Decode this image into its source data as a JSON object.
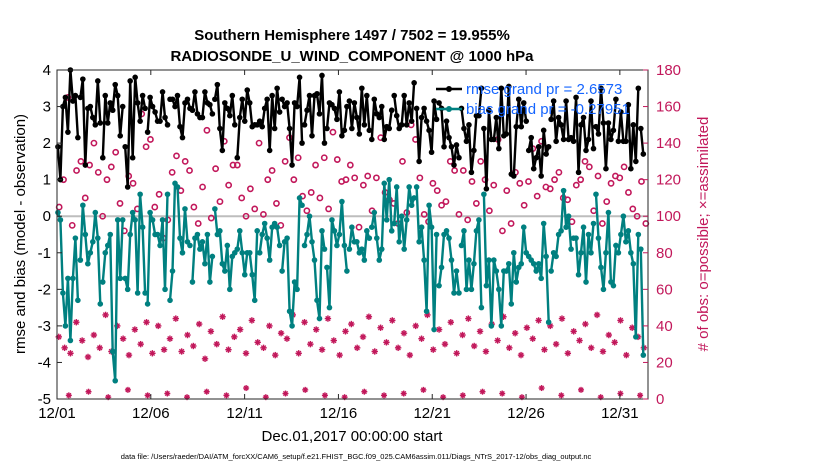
{
  "chart_data": {
    "type": "line",
    "title_line1": "Southern Hemisphere 1497 / 7502 = 19.955%",
    "title_line2": "RADIOSONDE_U_WIND_COMPONENT @ 1000 hPa",
    "xlabel": "Dec.01,2017 00:00:00 start",
    "ylabel_left": "rmse and bias (model - observation)",
    "ylabel_right": "# of obs: o=possible; ×=assimilated",
    "footer": "data file: /Users/raeder/DAI/ATM_forcXX/CAM6_setup/f.e21.FHIST_BGC.f09_025.CAM6assim.011/Diags_NTrS_2017-12/obs_diag_output.nc",
    "x_range_days": [
      0,
      31.5
    ],
    "x_ticks": [
      {
        "day": 0,
        "label": "12/01"
      },
      {
        "day": 5,
        "label": "12/06"
      },
      {
        "day": 10,
        "label": "12/11"
      },
      {
        "day": 15,
        "label": "12/16"
      },
      {
        "day": 20,
        "label": "12/21"
      },
      {
        "day": 25,
        "label": "12/26"
      },
      {
        "day": 30,
        "label": "12/31"
      }
    ],
    "ylim_left": [
      -5,
      4
    ],
    "yticks_left": [
      "4",
      "3",
      "2",
      "1",
      "0",
      "-1",
      "-2",
      "-3",
      "-4",
      "-5"
    ],
    "ylim_right": [
      0,
      180
    ],
    "yticks_right": [
      "180",
      "160",
      "140",
      "120",
      "100",
      "80",
      "60",
      "40",
      "20",
      "0"
    ],
    "legend": {
      "position": "top-right",
      "rmse_label": "rmse grand pr = 2.6573",
      "bias_label": "bias grand pr = -0.27951"
    },
    "colors": {
      "rmse": "#000000",
      "bias": "#008080",
      "obs": "#c2185b",
      "zero_line": "#bdbdbd",
      "legend_text": "#1565ff"
    },
    "rmse": [
      1.9,
      1.0,
      3.0,
      3.25,
      2.3,
      4.0,
      3.15,
      3.3,
      2.15,
      3.25,
      3.75,
      1.4,
      2.95,
      3.0,
      2.7,
      2.5,
      3.7,
      2.55,
      1.6,
      3.3,
      2.55,
      3.1,
      2.9,
      3.6,
      3.3,
      2.2,
      3.0,
      1.9,
      0.8,
      3.7,
      1.6,
      3.8,
      3.1,
      2.6,
      3.3,
      2.95,
      2.3,
      3.25,
      3.0,
      2.85,
      2.6,
      2.6,
      3.4,
      2.7,
      2.5,
      3.2,
      3.2,
      3.0,
      3.3,
      2.45,
      2.15,
      3.1,
      3.2,
      2.95,
      2.9,
      3.4,
      2.8,
      2.7,
      2.7,
      3.4,
      3.1,
      3.05,
      2.8,
      3.2,
      3.6,
      2.4,
      1.8,
      3.1,
      2.95,
      2.75,
      3.3,
      2.5,
      1.6,
      2.7,
      3.2,
      2.6,
      3.45,
      3.1,
      2.45,
      2.5,
      2.5,
      2.6,
      2.45,
      2.95,
      3.2,
      1.8,
      3.3,
      2.4,
      3.5,
      2.85,
      3.2,
      3.0,
      3.1,
      2.4,
      1.4,
      3.1,
      3.0,
      3.8,
      2.0,
      2.5,
      2.9,
      3.3,
      2.2,
      3.3,
      3.35,
      2.8,
      3.85,
      2.0,
      2.4,
      3.1,
      3.05,
      2.95,
      2.65,
      3.4,
      2.2,
      2.35,
      3.0,
      3.15,
      2.4,
      3.1,
      2.7,
      2.25,
      3.5,
      2.5,
      3.3,
      2.35,
      2.1,
      3.2,
      2.8,
      2.7,
      3.0,
      2.1,
      2.45,
      2.4,
      2.9,
      3.3,
      2.75,
      2.4,
      2.5,
      3.3,
      2.5,
      3.1,
      2.6,
      3.65,
      2.95,
      1.5,
      2.7,
      2.95,
      2.6,
      2.35,
      1.75,
      3.15,
      2.65,
      3.1,
      2.95,
      1.9,
      2.6,
      2.15,
      1.9,
      1.4,
      1.95,
      1.6,
      2.95,
      2.4,
      2.05,
      2.5,
      1.2,
      1.8,
      2.75,
      2.75,
      3.5,
      2.4,
      0.75,
      2.9,
      2.1,
      2.1,
      2.7,
      1.85,
      3.5,
      2.2,
      2.25,
      3.55,
      1.15,
      1.1,
      2.45,
      3.2,
      2.45,
      3.1,
      2.6,
      1.8,
      2.15,
      1.3,
      1.6,
      1.9,
      1.1,
      2.35,
      1.7,
      1.9,
      2.65,
      3.15,
      2.05,
      2.7,
      2.5,
      2.1,
      3.15,
      2.1,
      2.15,
      2.05,
      3.25,
      1.2,
      2.5,
      2.7,
      1.8,
      2.1,
      3.15,
      1.85,
      2.45,
      2.25,
      3.5,
      2.55,
      1.3,
      2.55,
      2.1,
      2.35,
      3.2,
      2.05,
      2.85,
      2.05,
      2.05,
      3.05,
      1.3,
      2.5,
      1.5,
      3.5,
      2.4,
      1.7
    ],
    "bias": [
      0.1,
      -0.1,
      -2.1,
      -3.0,
      -1.7,
      -3.4,
      -1.7,
      -0.6,
      -2.3,
      -1.2,
      0.3,
      -0.5,
      -1.3,
      -1.0,
      -0.7,
      0.1,
      -0.6,
      -2.4,
      -1.8,
      -1.0,
      -0.8,
      -0.5,
      -3.7,
      -4.5,
      -0.1,
      -1.7,
      -0.1,
      -1.7,
      -2.0,
      -0.5,
      0.1,
      -0.1,
      -2.1,
      0.6,
      -0.3,
      -2.1,
      -2.4,
      0.1,
      -0.1,
      -0.5,
      -0.5,
      -0.8,
      -0.1,
      -2.0,
      0.6,
      -2.3,
      -1.5,
      0.9,
      0.8,
      -0.6,
      -1.0,
      0.2,
      -0.7,
      -0.8,
      -1.8,
      -0.6,
      -0.5,
      -0.9,
      -0.7,
      -1.3,
      -0.5,
      -1.8,
      -1.1,
      0.2,
      -0.5,
      -0.4,
      -1.3,
      -1.5,
      -0.8,
      -2.0,
      -1.1,
      -1.0,
      -0.9,
      -0.4,
      -1.0,
      -1.6,
      -1.0,
      -1.0,
      -1.6,
      -2.3,
      -0.4,
      -1.0,
      -0.5,
      -0.2,
      -0.6,
      -1.2,
      -0.3,
      -0.2,
      -0.3,
      -0.8,
      -1.5,
      -0.7,
      -0.6,
      -2.6,
      -3.0,
      -1.8,
      -2.0,
      0.5,
      0.3,
      -0.8,
      -0.5,
      0.0,
      -0.7,
      -1.2,
      -2.3,
      -2.8,
      -0.4,
      -0.9,
      -1.4,
      -2.5,
      -0.1,
      -0.4,
      -0.8,
      -0.5,
      0.4,
      -0.8,
      -1.5,
      -0.9,
      -0.3,
      -0.7,
      -0.7,
      -1.0,
      -0.9,
      -1.2,
      -0.4,
      -0.6,
      -0.3,
      0.1,
      -0.6,
      -1.2,
      -0.9,
      0.9,
      -0.1,
      1.0,
      -0.4,
      -0.2,
      0.8,
      -0.7,
      0.0,
      -0.9,
      -0.1,
      0.8,
      0.3,
      0.5,
      0.8,
      -0.7,
      -0.3,
      -1.2,
      -2.6,
      0.3,
      -0.3,
      -3.1,
      -0.5,
      -1.9,
      -1.4,
      -0.5,
      -0.4,
      -0.6,
      -1.2,
      -2.1,
      -1.5,
      -2.1,
      -0.8,
      -0.4,
      -2.0,
      -1.2,
      -2.0,
      -1.3,
      -0.4,
      -0.1,
      -2.5,
      0.6,
      -1.9,
      -1.2,
      -3.0,
      -1.2,
      -1.5,
      -2.0,
      -3.0,
      -1.5,
      -1.5,
      -1.3,
      -2.4,
      -1.0,
      -1.8,
      -1.4,
      -1.3,
      -0.3,
      -1.0,
      -1.1,
      -1.2,
      -1.3,
      -1.5,
      -1.3,
      -1.7,
      -0.2,
      -1.1,
      -2.9,
      -1.5,
      -1.0,
      -1.1,
      -0.5,
      -0.4,
      0.7,
      -0.3,
      0.0,
      -0.9,
      -0.6,
      -0.6,
      -1.6,
      -1.0,
      -0.3,
      -1.8,
      -0.5,
      -1.0,
      -0.2,
      0.6,
      -0.6,
      -1.4,
      -2.0,
      -1.0,
      0.1,
      -1.8,
      -1.9,
      -0.8,
      -1.0,
      -0.5,
      0.0,
      -0.7,
      -0.4,
      -1.0,
      -1.3,
      -3.3,
      -0.5,
      -0.9,
      -3.8
    ],
    "obs_possible": [
      105,
      120,
      165,
      95,
      125,
      130,
      110,
      128,
      140,
      124,
      100,
      120,
      127,
      135,
      107,
      92,
      122,
      118,
      104,
      156,
      138,
      142,
      105,
      112,
      88,
      98,
      124,
      133,
      114,
      130,
      125,
      105,
      96,
      116,
      147,
      99,
      126,
      108,
      141,
      117,
      128,
      128,
      110,
      100,
      115,
      104,
      140,
      101,
      120,
      125,
      107,
      95,
      130,
      143,
      120,
      132,
      111,
      103,
      113,
      128,
      110,
      132,
      104,
      146,
      131,
      119,
      120,
      128,
      121,
      94,
      117,
      122,
      103,
      121,
      143,
      113,
      109,
      107,
      96,
      130,
      102,
      150,
      142,
      121,
      101,
      97,
      118,
      114,
      106,
      108,
      130,
      125,
      101,
      125,
      98,
      119,
      107,
      130,
      120,
      103,
      117,
      142,
      92,
      114,
      96,
      124,
      118,
      106,
      119,
      137,
      111,
      141,
      116,
      115,
      120,
      124,
      110,
      109,
      97,
      117,
      120,
      130,
      127,
      103,
      122,
      96,
      108,
      118,
      122,
      121,
      127,
      113,
      104,
      100,
      119,
      96
    ],
    "obs_assimilated": [
      34,
      28,
      25,
      42,
      32,
      23,
      35,
      28,
      46,
      26,
      40,
      33,
      24,
      38,
      30,
      42,
      25,
      40,
      27,
      33,
      44,
      26,
      35,
      29,
      41,
      22,
      37,
      30,
      45,
      27,
      34,
      38,
      25,
      43,
      31,
      28,
      40,
      24,
      36,
      33,
      46,
      25,
      42,
      30,
      38,
      27,
      44,
      32,
      24,
      37,
      41,
      28,
      34,
      45,
      26,
      39,
      31,
      43,
      28,
      36,
      24,
      40,
      33,
      46,
      27,
      38,
      30,
      42,
      25,
      35,
      44,
      29,
      37,
      26,
      41,
      32,
      45,
      28,
      36,
      24,
      39,
      33,
      43,
      27,
      40,
      30,
      44,
      25,
      37,
      32,
      41,
      28,
      46,
      26,
      35,
      31,
      43,
      24,
      39,
      34,
      28
    ],
    "obs_assimilated_floor": [
      2,
      4,
      1,
      5,
      2,
      3,
      1,
      4,
      2,
      6,
      1,
      3,
      5,
      2,
      1,
      4,
      2,
      3,
      5,
      1,
      2,
      4,
      3,
      1,
      6,
      2,
      5,
      1,
      3,
      2
    ]
  }
}
